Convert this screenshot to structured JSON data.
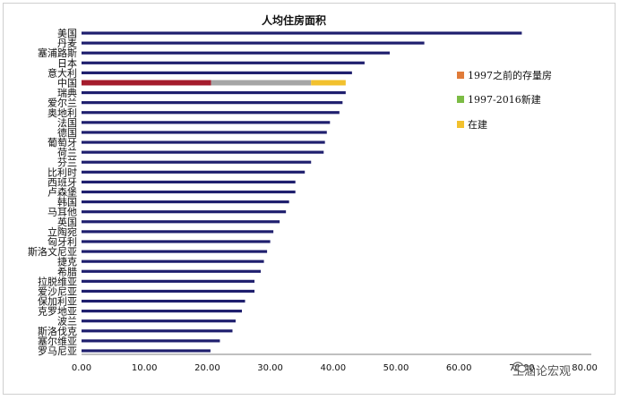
{
  "chart_data": {
    "type": "bar",
    "orientation": "horizontal",
    "title": "人均住房面积",
    "categories": [
      "美国",
      "丹麦",
      "塞浦路斯",
      "日本",
      "意大利",
      "中国",
      "瑞典",
      "爱尔兰",
      "奥地利",
      "法国",
      "德国",
      "葡萄牙",
      "荷兰",
      "芬兰",
      "比利时",
      "西班牙",
      "卢森堡",
      "韩国",
      "马耳他",
      "英国",
      "立陶宛",
      "匈牙利",
      "斯洛文尼亚",
      "捷克",
      "希腊",
      "拉脱维亚",
      "爱沙尼亚",
      "保加利亚",
      "克罗地亚",
      "波兰",
      "斯洛伐克",
      "塞尔维亚",
      "罗马尼亚"
    ],
    "values": [
      70.0,
      54.5,
      49.0,
      45.0,
      43.0,
      null,
      42.0,
      41.5,
      41.0,
      39.5,
      39.0,
      38.7,
      38.5,
      36.5,
      35.5,
      34.0,
      34.0,
      33.0,
      32.5,
      31.5,
      30.5,
      30.0,
      29.5,
      29.0,
      28.5,
      27.5,
      27.5,
      26.0,
      25.5,
      24.5,
      24.0,
      22.0,
      20.5
    ],
    "stacked": {
      "category": "中国",
      "segments": [
        {
          "name": "1997之前的存量房",
          "value": 20.6
        },
        {
          "name": "1997-2016新建",
          "value": 15.9
        },
        {
          "name": "在建",
          "value": 5.5
        }
      ]
    },
    "series_colors": {
      "default": "#1f1f6e",
      "1997之前的存量房": "#a51c2c",
      "1997-2016新建": "#a6a6a6",
      "在建": "#f2c12e"
    },
    "legend": {
      "placement": "right",
      "entries": [
        {
          "label": "1997之前的存量房",
          "color": "#e07b39"
        },
        {
          "label": "1997-2016新建",
          "color": "#7cbc45"
        },
        {
          "label": "在建",
          "color": "#f2c12e"
        }
      ]
    },
    "xlim": [
      0,
      70
    ],
    "xticks": [
      "0.00",
      "10.00",
      "20.00",
      "30.00",
      "40.00",
      "50.00",
      "60.00",
      "70.00",
      "80.00"
    ],
    "grid": false
  },
  "watermark": {
    "text": "王涵论宏观",
    "icon": "wechat-icon"
  }
}
